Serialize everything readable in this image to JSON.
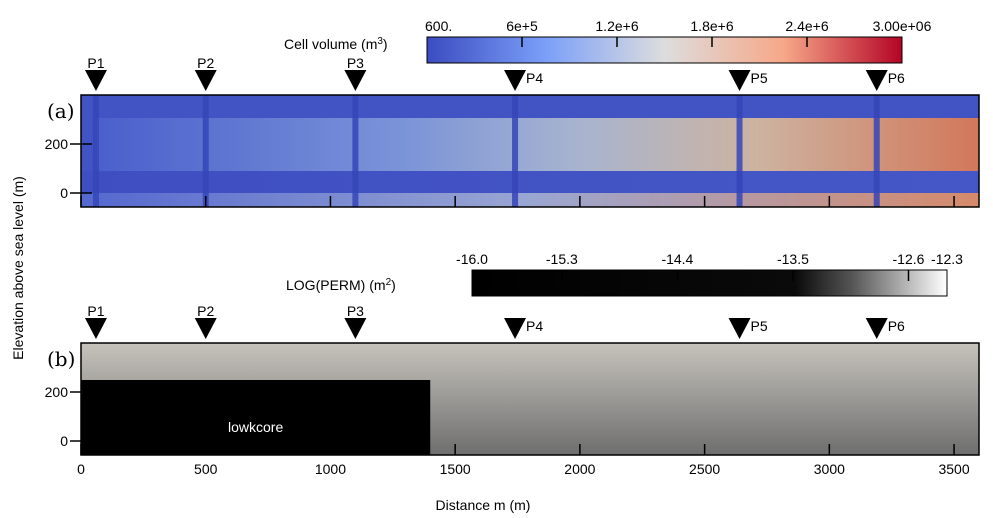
{
  "colorbar_volume": {
    "title_main": "Cell volume (m",
    "title_sup": "3",
    "title_end": ")",
    "min_color": "#3b4cc0",
    "mid_color": "#dddddd",
    "max_color": "#b40426",
    "labels": [
      {
        "text": "600.",
        "frac": 0.0
      },
      {
        "text": "6e+5",
        "frac": 0.2
      },
      {
        "text": "1.2e+6",
        "frac": 0.4
      },
      {
        "text": "1.8e+6",
        "frac": 0.6
      },
      {
        "text": "2.4e+6",
        "frac": 0.8
      },
      {
        "text": "3.00e+06",
        "frac": 1.0
      }
    ]
  },
  "colorbar_perm": {
    "title_main": "LOG(PERM) (m",
    "title_sup": "2",
    "title_end": ")",
    "labels": [
      {
        "text": "-16.0",
        "value": -16.0
      },
      {
        "text": "-15.3",
        "value": -15.3
      },
      {
        "text": "-14.4",
        "value": -14.4
      },
      {
        "text": "-13.5",
        "value": -13.5
      },
      {
        "text": "-12.6",
        "value": -12.6
      },
      {
        "text": "-12.3",
        "value": -12.3
      }
    ]
  },
  "panel_a": {
    "label": "(a)",
    "wells": [
      {
        "name": "P1",
        "x": 60,
        "label_side": "top"
      },
      {
        "name": "P2",
        "x": 500,
        "label_side": "top"
      },
      {
        "name": "P3",
        "x": 1100,
        "label_side": "top"
      },
      {
        "name": "P4",
        "x": 1740,
        "label_side": "right"
      },
      {
        "name": "P5",
        "x": 2640,
        "label_side": "right"
      },
      {
        "name": "P6",
        "x": 3190,
        "label_side": "right"
      }
    ]
  },
  "panel_b": {
    "label": "(b)",
    "region_label": "lowkcore",
    "lowkcore_extent_m": [
      0,
      1400
    ],
    "lowkcore_elevation_top_m": 250,
    "wells": [
      {
        "name": "P1",
        "x": 60,
        "label_side": "top"
      },
      {
        "name": "P2",
        "x": 500,
        "label_side": "top"
      },
      {
        "name": "P3",
        "x": 1100,
        "label_side": "top"
      },
      {
        "name": "P4",
        "x": 1740,
        "label_side": "right"
      },
      {
        "name": "P5",
        "x": 2640,
        "label_side": "right"
      },
      {
        "name": "P6",
        "x": 3190,
        "label_side": "right"
      }
    ]
  },
  "axes": {
    "ylabel": "Elevation above sea level (m)",
    "xlabel": "Distance m (m)",
    "x_ticks": [
      {
        "label": "0",
        "value": 0
      },
      {
        "label": "500",
        "value": 500
      },
      {
        "label": "1000",
        "value": 1000
      },
      {
        "label": "1500",
        "value": 1500
      },
      {
        "label": "2000",
        "value": 2000
      },
      {
        "label": "2500",
        "value": 2500
      },
      {
        "label": "3000",
        "value": 3000
      },
      {
        "label": "3500",
        "value": 3500
      }
    ],
    "y_ticks": [
      {
        "label": "200",
        "value": 200
      },
      {
        "label": "0",
        "value": 0
      }
    ],
    "x_range": [
      0,
      3600
    ]
  }
}
